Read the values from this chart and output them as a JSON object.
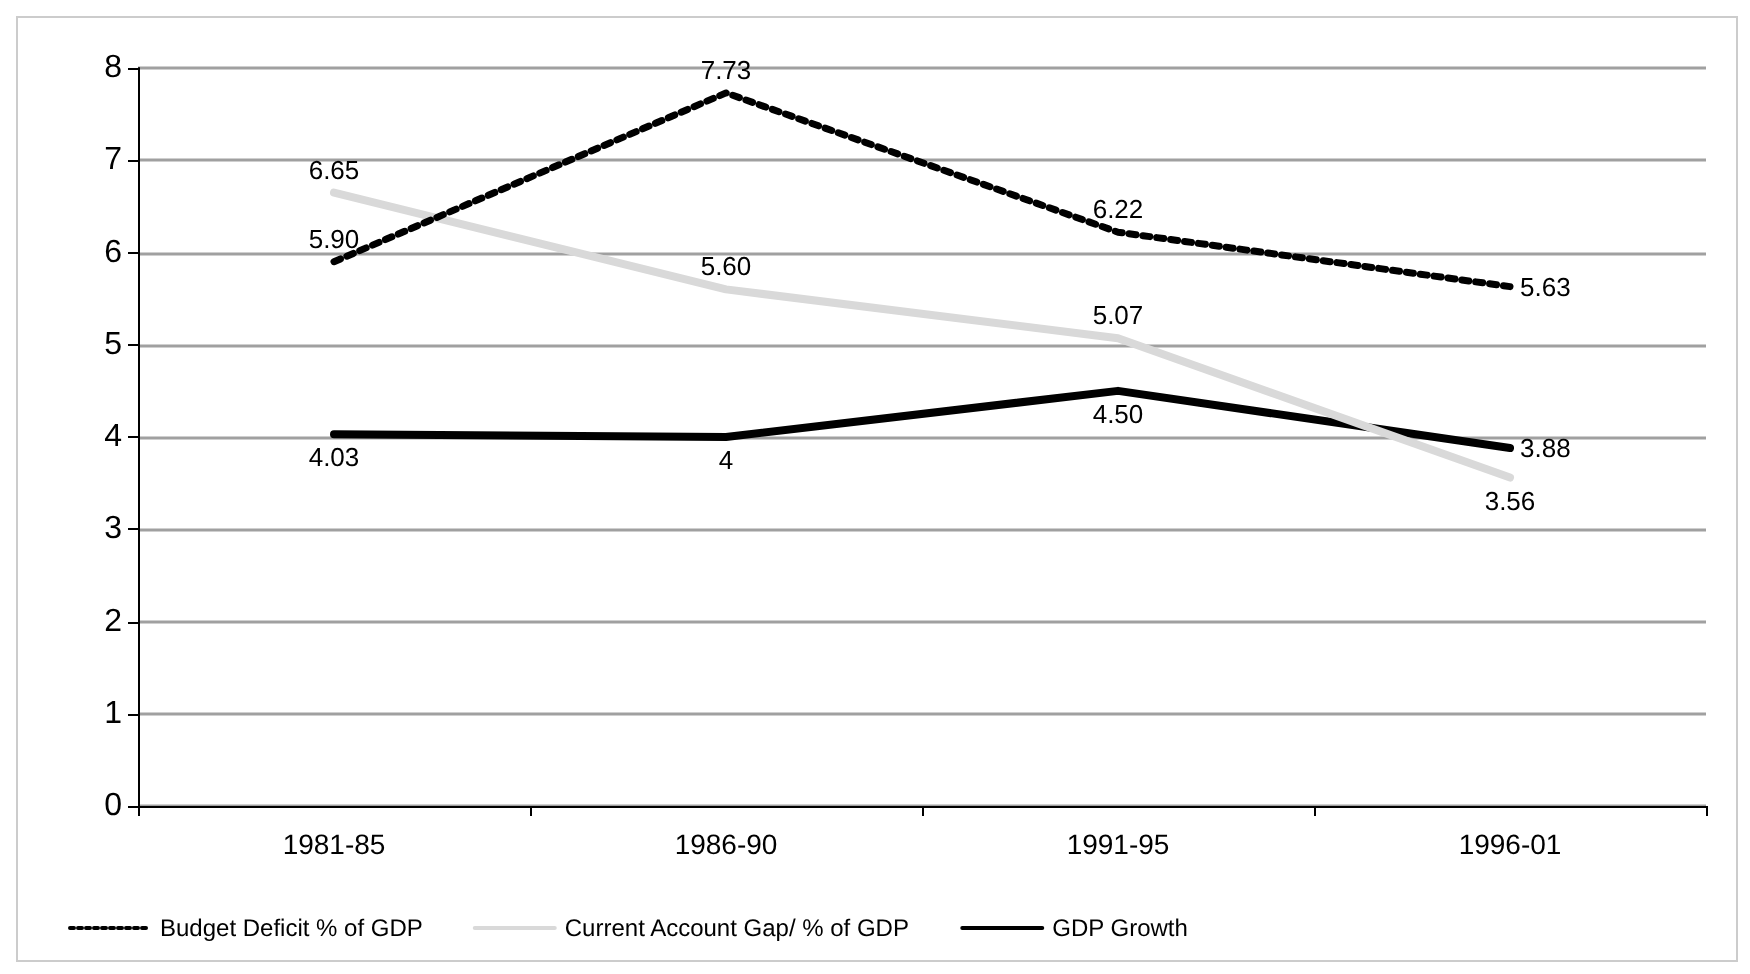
{
  "chart_data": {
    "type": "line",
    "categories": [
      "1981-85",
      "1986-90",
      "1991-95",
      "1996-01"
    ],
    "series": [
      {
        "name": "Budget Deficit % of GDP",
        "color": "#000000",
        "line_style": "dotted",
        "values": [
          5.9,
          7.73,
          6.22,
          5.63
        ],
        "value_labels": [
          "5.90",
          "7.73",
          "6.22",
          "5.63"
        ]
      },
      {
        "name": "Current Account Gap/ % of GDP",
        "color": "#d9d9d9",
        "line_style": "solid",
        "values": [
          6.65,
          5.6,
          5.07,
          3.56
        ],
        "value_labels": [
          "6.65",
          "5.60",
          "5.07",
          "3.56"
        ]
      },
      {
        "name": "GDP Growth",
        "color": "#000000",
        "line_style": "solid",
        "values": [
          4.03,
          4,
          4.5,
          3.88
        ],
        "value_labels": [
          "4.03",
          "4",
          "4.50",
          "3.88"
        ]
      }
    ],
    "ylim": [
      0,
      8
    ],
    "yticks": [
      0,
      1,
      2,
      3,
      4,
      5,
      6,
      7,
      8
    ],
    "grid": "y",
    "legend": "bottom",
    "marker": "none"
  }
}
